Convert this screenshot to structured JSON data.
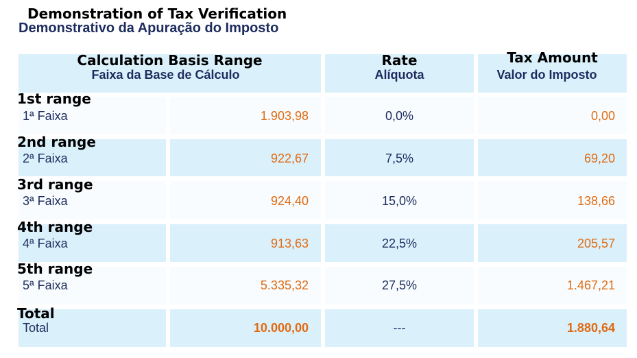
{
  "title": {
    "en": "Demonstration of Tax Verification",
    "pt": "Demonstrativo da Apuração do Imposto"
  },
  "headers": {
    "range": {
      "en": "Calculation Basis Range",
      "pt": "Faixa da Base de Cálculo"
    },
    "rate": {
      "en": "Rate",
      "pt": "Alíquota"
    },
    "tax": {
      "en": "Tax Amount",
      "pt": "Valor do Imposto"
    }
  },
  "rows": [
    {
      "en": "1st range",
      "pt": "1ª Faixa",
      "base": "1.903,98",
      "rate": "0,0%",
      "tax": "0,00"
    },
    {
      "en": "2nd range",
      "pt": "2ª Faixa",
      "base": "922,67",
      "rate": "7,5%",
      "tax": "69,20"
    },
    {
      "en": "3rd range",
      "pt": "3ª Faixa",
      "base": "924,40",
      "rate": "15,0%",
      "tax": "138,66"
    },
    {
      "en": "4th range",
      "pt": "4ª Faixa",
      "base": "913,63",
      "rate": "22,5%",
      "tax": "205,57"
    },
    {
      "en": "5th range",
      "pt": "5ª Faixa",
      "base": "5.335,32",
      "rate": "27,5%",
      "tax": "1.467,21"
    }
  ],
  "total": {
    "en": "Total",
    "pt": "Total",
    "base": "10.000,00",
    "rate": "---",
    "tax": "1.880,64"
  },
  "colors": {
    "header_bg": "#daf0fb",
    "row_alt_bg": "#daf0fb",
    "row_bg": "#f8fcfe",
    "navy_text": "#1d2c5e",
    "orange_text": "#e06b12"
  }
}
